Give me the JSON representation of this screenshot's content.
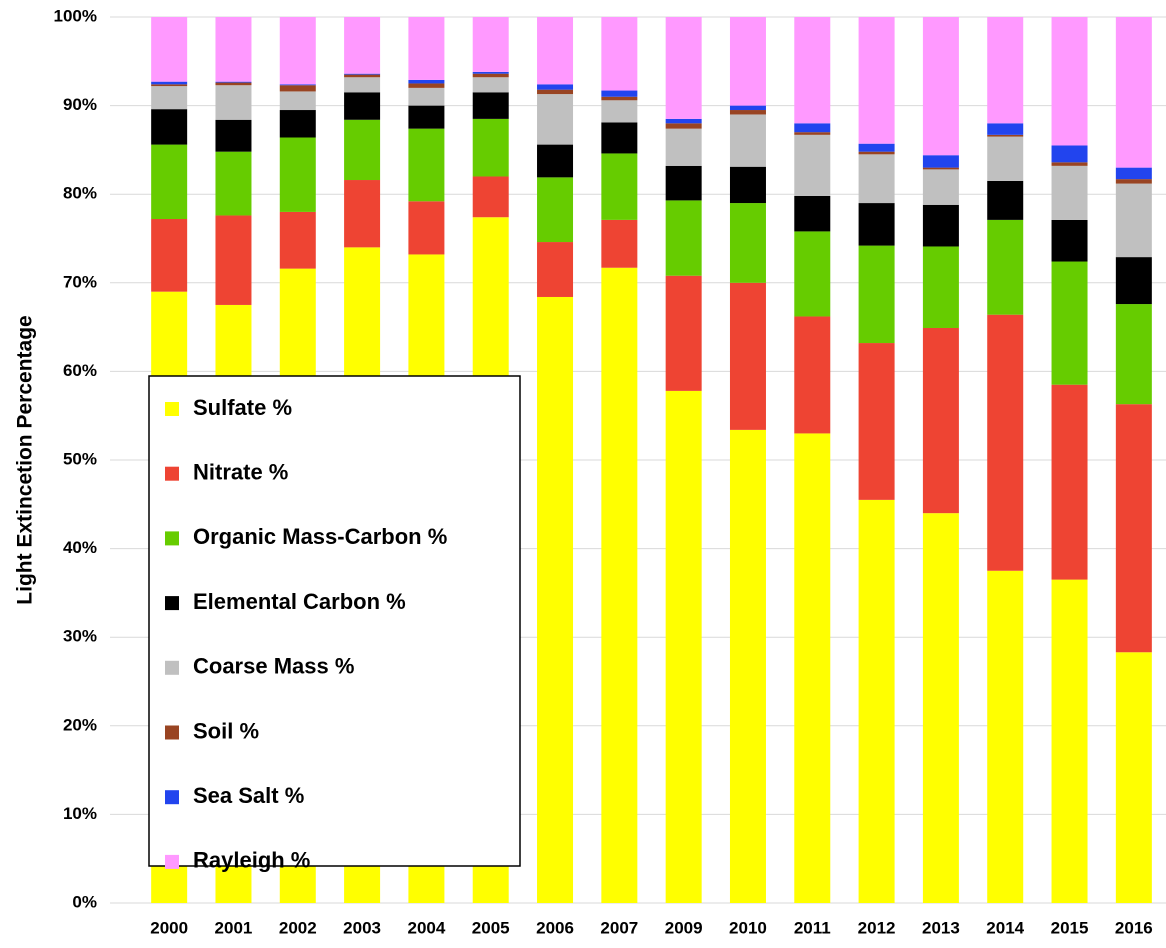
{
  "chart_data": {
    "type": "stacked_bar",
    "ylabel": "Light Extincetion Percentage",
    "categories": [
      "2000",
      "2001",
      "2002",
      "2003",
      "2004",
      "2005",
      "2006",
      "2007",
      "2009",
      "2010",
      "2011",
      "2012",
      "2013",
      "2014",
      "2015",
      "2016"
    ],
    "series": [
      {
        "name": "Sulfate %",
        "color": "#ffff00",
        "values": [
          69,
          67.5,
          71.6,
          74,
          73.2,
          77.4,
          68.4,
          71.7,
          57.8,
          53.4,
          53.0,
          45.5,
          44.0,
          37.5,
          36.5,
          28.3
        ]
      },
      {
        "name": "Nitrate %",
        "color": "#ee4433",
        "values": [
          8.2,
          10.1,
          6.4,
          7.6,
          6.0,
          4.6,
          6.2,
          5.4,
          13.0,
          16.6,
          13.2,
          17.7,
          20.9,
          28.9,
          22.0,
          28.0
        ]
      },
      {
        "name": "Organic Mass-Carbon %",
        "color": "#66cc00",
        "values": [
          8.4,
          7.2,
          8.4,
          6.8,
          8.2,
          6.5,
          7.3,
          7.5,
          8.5,
          9.0,
          9.6,
          11.0,
          9.2,
          10.7,
          13.9,
          11.3
        ]
      },
      {
        "name": "Elemental Carbon %",
        "color": "#000000",
        "values": [
          4.0,
          3.6,
          3.1,
          3.1,
          2.6,
          3.0,
          3.7,
          3.5,
          3.9,
          4.1,
          4.0,
          4.8,
          4.7,
          4.4,
          4.7,
          5.3
        ]
      },
      {
        "name": "Coarse Mass %",
        "color": "#c0c0c0",
        "values": [
          2.6,
          3.9,
          2.1,
          1.7,
          2.0,
          1.7,
          5.7,
          2.5,
          4.2,
          5.9,
          6.9,
          5.5,
          4.0,
          5.0,
          6.1,
          8.3
        ]
      },
      {
        "name": "Soil %",
        "color": "#994422",
        "values": [
          0.2,
          0.3,
          0.7,
          0.3,
          0.5,
          0.4,
          0.5,
          0.4,
          0.6,
          0.5,
          0.3,
          0.3,
          0.2,
          0.2,
          0.4,
          0.5
        ]
      },
      {
        "name": "Sea Salt %",
        "color": "#2244ee",
        "values": [
          0.3,
          0.1,
          0.1,
          0.1,
          0.4,
          0.2,
          0.6,
          0.7,
          0.5,
          0.5,
          1.0,
          0.9,
          1.4,
          1.3,
          1.9,
          1.3
        ]
      },
      {
        "name": "Rayleigh %",
        "color": "#ff99ff",
        "values": [
          7.3,
          7.3,
          7.6,
          6.4,
          7.1,
          6.2,
          7.6,
          8.3,
          11.5,
          10.0,
          12.0,
          14.3,
          15.6,
          12.0,
          14.5,
          17.0
        ]
      }
    ],
    "ylim": [
      0,
      100
    ],
    "yticks": [
      {
        "value": 0,
        "label": "0%"
      },
      {
        "value": 10,
        "label": "10%"
      },
      {
        "value": 20,
        "label": "20%"
      },
      {
        "value": 30,
        "label": "30%"
      },
      {
        "value": 40,
        "label": "40%"
      },
      {
        "value": 50,
        "label": "50%"
      },
      {
        "value": 60,
        "label": "60%"
      },
      {
        "value": 70,
        "label": "70%"
      },
      {
        "value": 80,
        "label": "80%"
      },
      {
        "value": 90,
        "label": "90%"
      },
      {
        "value": 100,
        "label": "100%"
      }
    ],
    "grid": true,
    "legend_position": "lower left"
  }
}
